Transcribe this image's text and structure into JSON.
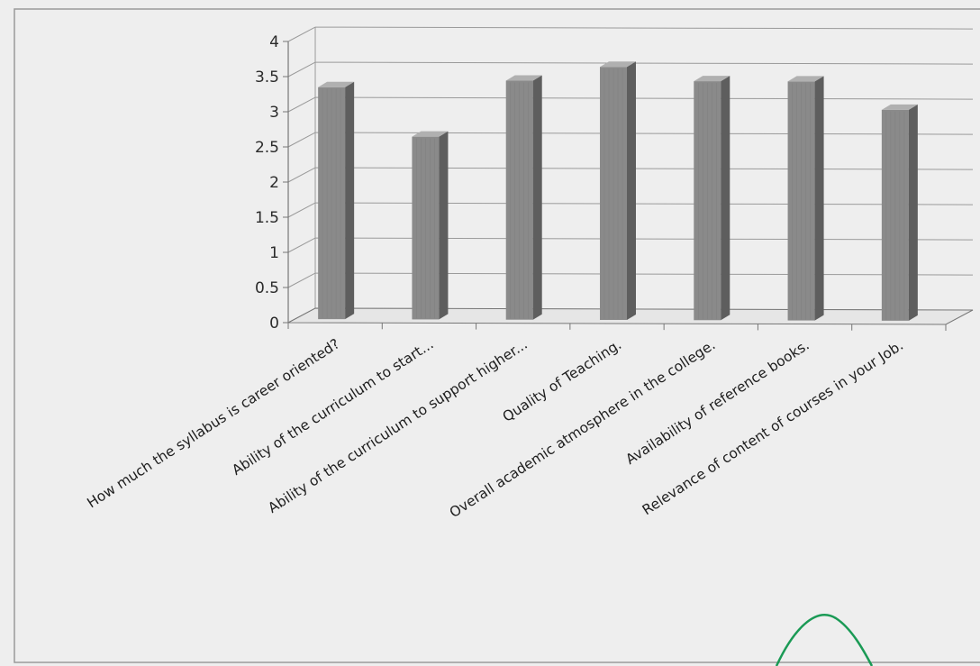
{
  "chart_data": {
    "type": "bar",
    "title": "",
    "xlabel": "",
    "ylabel": "",
    "ylim": [
      0,
      4
    ],
    "yticks": [
      "0",
      "0.5",
      "1",
      "1.5",
      "2",
      "2.5",
      "3",
      "3.5",
      "4"
    ],
    "grid": true,
    "legend": "none",
    "categories": [
      "How much the syllabus is career oriented?",
      "Ability of the curriculum to start...",
      "Ability of the curriculum to support higher...",
      "Quality of Teaching.",
      "Overall academic atmosphere in the college.",
      "Availability of reference books.",
      "Relevance of content of courses in your Job."
    ],
    "values": [
      3.3,
      2.6,
      3.4,
      3.6,
      3.4,
      3.4,
      3.0
    ],
    "colors": {
      "bar_front": "#8a8a8a",
      "bar_side": "#5e5e5e",
      "bar_top": "#b0b0b0",
      "grid": "#9a9a9a",
      "frame": "#777777",
      "annotation": "#1a9a55"
    }
  }
}
